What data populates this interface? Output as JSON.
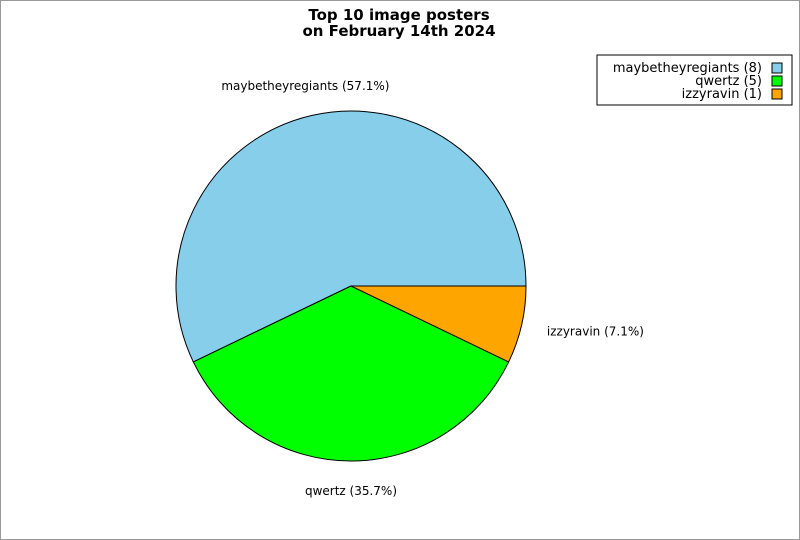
{
  "chart_data": {
    "type": "pie",
    "title": "Top 10 image posters",
    "subtitle": "on February 14th 2024",
    "slices": [
      {
        "label": "maybetheyregiants",
        "value": 8,
        "percent_text": "57.1%",
        "legend_text": "maybetheyregiants (8)",
        "slice_text": "maybetheyregiants (57.1%)",
        "color": "#87ceeb"
      },
      {
        "label": "qwertz",
        "value": 5,
        "percent_text": "35.7%",
        "legend_text": "qwertz (5)",
        "slice_text": "qwertz (35.7%)",
        "color": "#00ff00"
      },
      {
        "label": "izzyravin",
        "value": 1,
        "percent_text": "7.1%",
        "legend_text": "izzyravin (1)",
        "slice_text": "izzyravin (7.1%)",
        "color": "#ffa500"
      }
    ],
    "legend_position": "top-right"
  }
}
